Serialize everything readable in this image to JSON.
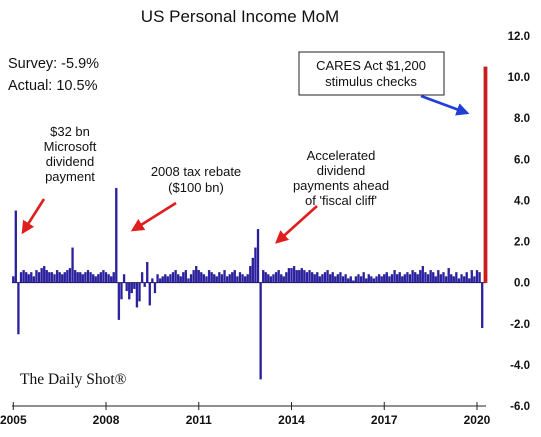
{
  "chart_data": {
    "type": "bar",
    "title": "US Personal Income MoM",
    "survey_label": "Survey: -5.9%",
    "actual_label": "Actual:  10.5%",
    "x_ticks": [
      "2005",
      "2008",
      "2011",
      "2014",
      "2017",
      "2020"
    ],
    "y_ticks": [
      "12.0",
      "10.0",
      "8.0",
      "6.0",
      "4.0",
      "2.0",
      "0.0",
      "-2.0",
      "-4.0",
      "-6.0"
    ],
    "ylim": [
      -6,
      12
    ],
    "start": "2005-01",
    "end": "2020-04",
    "grid": false,
    "colors": {
      "bar": "#2b1fa8",
      "highlight": "#c81e1e",
      "arrow_red": "#e01e1e",
      "arrow_blue": "#1f3fd6"
    },
    "series": [
      {
        "values": [
          0.3,
          3.5,
          -2.5,
          0.5,
          0.6,
          0.5,
          0.4,
          0.5,
          0.3,
          0.6,
          0.5,
          0.7,
          0.8,
          0.6,
          0.5,
          0.5,
          0.4,
          0.6,
          0.5,
          0.4,
          0.5,
          0.6,
          0.7,
          1.7,
          0.6,
          0.5,
          0.5,
          0.4,
          0.5,
          0.6,
          0.5,
          0.4,
          0.3,
          0.4,
          0.5,
          0.6,
          0.5,
          0.4,
          0.3,
          0.5,
          4.6,
          -1.8,
          -0.8,
          0.4,
          -0.4,
          -0.8,
          -0.5,
          -0.3,
          -1.2,
          -0.9,
          0.5,
          -0.2,
          1.0,
          -1.1,
          0.2,
          -0.5,
          0.4,
          0.2,
          0.3,
          0.4,
          0.3,
          0.4,
          0.5,
          0.6,
          0.4,
          0.3,
          0.5,
          0.6,
          0.2,
          0.4,
          0.6,
          0.8,
          0.6,
          0.5,
          0.4,
          0.3,
          0.6,
          0.5,
          0.4,
          0.3,
          0.5,
          0.4,
          0.6,
          0.3,
          0.4,
          0.5,
          0.6,
          0.3,
          0.5,
          0.4,
          0.3,
          0.4,
          0.8,
          1.2,
          1.7,
          2.6,
          -4.7,
          0.6,
          0.5,
          0.4,
          0.3,
          0.4,
          0.5,
          0.6,
          0.4,
          0.3,
          0.5,
          0.7,
          0.7,
          0.8,
          0.6,
          0.6,
          0.7,
          0.6,
          0.5,
          0.6,
          0.5,
          0.4,
          0.5,
          0.3,
          0.4,
          0.5,
          0.6,
          0.4,
          0.5,
          0.3,
          0.4,
          0.5,
          0.3,
          0.4,
          0.2,
          0.3,
          0.1,
          0.3,
          0.4,
          0.3,
          0.5,
          0.2,
          0.4,
          0.3,
          0.2,
          0.3,
          0.4,
          0.3,
          0.4,
          0.5,
          0.3,
          0.4,
          0.6,
          0.4,
          0.5,
          0.3,
          0.4,
          0.5,
          0.4,
          0.6,
          0.5,
          0.4,
          0.6,
          0.8,
          0.5,
          0.4,
          0.6,
          0.5,
          0.3,
          0.6,
          0.4,
          0.5,
          0.3,
          0.7,
          0.4,
          0.3,
          0.5,
          0.2,
          0.4,
          0.3,
          0.5,
          0.2,
          0.6,
          0.3,
          0.6,
          0.5,
          -2.2,
          10.5
        ]
      }
    ],
    "highlight_last": true,
    "annotations": [
      {
        "lines": [
          "$32 bn",
          "Microsoft",
          "dividend",
          "payment"
        ],
        "arrow_color": "red"
      },
      {
        "lines": [
          "2008 tax rebate",
          "($100 bn)"
        ],
        "arrow_color": "red"
      },
      {
        "lines": [
          "Accelerated",
          "dividend",
          "payments ahead",
          "of 'fiscal cliff'"
        ],
        "arrow_color": "red"
      },
      {
        "lines": [
          "CARES Act $1,200",
          "stimulus checks"
        ],
        "arrow_color": "blue",
        "boxed": true
      }
    ],
    "source": "The Daily Shot®"
  }
}
